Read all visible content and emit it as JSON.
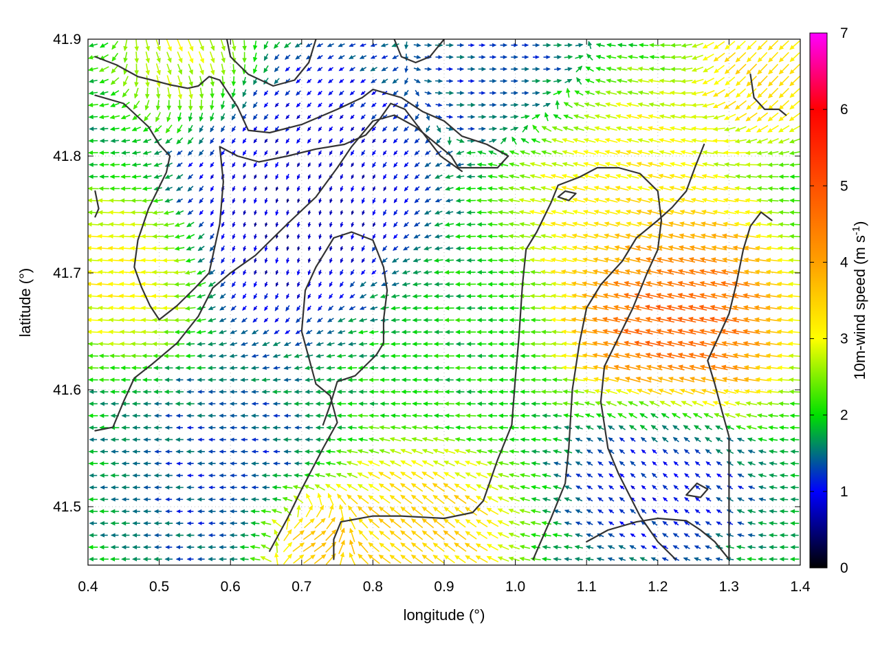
{
  "chart_data": {
    "type": "vector-field",
    "xlabel": "longitude (°)",
    "ylabel": "latitude (°)",
    "colorbar_label": "10m-wind speed (m s-1)",
    "colorbar_label_parts": {
      "main": "10m-wind speed (m s",
      "exp": "-1",
      "close": ")"
    },
    "xlim": [
      0.4,
      1.4
    ],
    "ylim": [
      41.45,
      41.9
    ],
    "clim": [
      0,
      7
    ],
    "xticks": [
      {
        "value": 0.4,
        "label": "0.4"
      },
      {
        "value": 0.5,
        "label": "0.5"
      },
      {
        "value": 0.6,
        "label": "0.6"
      },
      {
        "value": 0.7,
        "label": "0.7"
      },
      {
        "value": 0.8,
        "label": "0.8"
      },
      {
        "value": 0.9,
        "label": "0.9"
      },
      {
        "value": 1.0,
        "label": "1.0"
      },
      {
        "value": 1.1,
        "label": "1.1"
      },
      {
        "value": 1.2,
        "label": "1.2"
      },
      {
        "value": 1.3,
        "label": "1.3"
      },
      {
        "value": 1.4,
        "label": "1.4"
      }
    ],
    "yticks": [
      {
        "value": 41.5,
        "label": "41.5"
      },
      {
        "value": 41.6,
        "label": "41.6"
      },
      {
        "value": 41.7,
        "label": "41.7"
      },
      {
        "value": 41.8,
        "label": "41.8"
      },
      {
        "value": 41.9,
        "label": "41.9"
      }
    ],
    "cticks": [
      {
        "value": 0,
        "label": "0"
      },
      {
        "value": 1,
        "label": "1"
      },
      {
        "value": 2,
        "label": "2"
      },
      {
        "value": 3,
        "label": "3"
      },
      {
        "value": 4,
        "label": "4"
      },
      {
        "value": 5,
        "label": "5"
      },
      {
        "value": 6,
        "label": "6"
      },
      {
        "value": 7,
        "label": "7"
      }
    ],
    "colormap": [
      {
        "v": 0,
        "color": "#000000"
      },
      {
        "v": 1,
        "color": "#0000ff"
      },
      {
        "v": 2,
        "color": "#00e000"
      },
      {
        "v": 3,
        "color": "#ffff00"
      },
      {
        "v": 4,
        "color": "#ffa000"
      },
      {
        "v": 5,
        "color": "#ff5000"
      },
      {
        "v": 6,
        "color": "#ff0000"
      },
      {
        "v": 7,
        "color": "#ff00ff"
      }
    ],
    "grid": "dotted",
    "contour_color": "#333333",
    "contours": [
      [
        [
          0.41,
          41.885
        ],
        [
          0.44,
          41.878
        ],
        [
          0.47,
          41.868
        ],
        [
          0.49,
          41.865
        ],
        [
          0.515,
          41.861
        ],
        [
          0.54,
          41.858
        ],
        [
          0.555,
          41.86
        ],
        [
          0.57,
          41.868
        ],
        [
          0.585,
          41.865
        ],
        [
          0.61,
          41.842
        ],
        [
          0.625,
          41.822
        ],
        [
          0.655,
          41.82
        ],
        [
          0.7,
          41.827
        ],
        [
          0.75,
          41.84
        ],
        [
          0.785,
          41.85
        ],
        [
          0.8,
          41.857
        ],
        [
          0.84,
          41.85
        ],
        [
          0.87,
          41.838
        ],
        [
          0.9,
          41.83
        ],
        [
          0.925,
          41.817
        ],
        [
          0.96,
          41.81
        ],
        [
          0.99,
          41.8
        ]
      ],
      [
        [
          0.41,
          41.852
        ],
        [
          0.45,
          41.845
        ],
        [
          0.485,
          41.825
        ],
        [
          0.5,
          41.81
        ],
        [
          0.515,
          41.8
        ],
        [
          0.51,
          41.786
        ],
        [
          0.485,
          41.755
        ],
        [
          0.47,
          41.728
        ],
        [
          0.465,
          41.705
        ],
        [
          0.475,
          41.688
        ],
        [
          0.487,
          41.672
        ],
        [
          0.5,
          41.66
        ],
        [
          0.525,
          41.672
        ],
        [
          0.55,
          41.687
        ],
        [
          0.57,
          41.7
        ],
        [
          0.585,
          41.742
        ],
        [
          0.59,
          41.778
        ],
        [
          0.585,
          41.808
        ],
        [
          0.61,
          41.8
        ],
        [
          0.64,
          41.795
        ],
        [
          0.68,
          41.8
        ],
        [
          0.72,
          41.806
        ],
        [
          0.76,
          41.81
        ],
        [
          0.79,
          41.818
        ],
        [
          0.81,
          41.832
        ],
        [
          0.825,
          41.845
        ],
        [
          0.845,
          41.84
        ],
        [
          0.87,
          41.82
        ],
        [
          0.895,
          41.8
        ],
        [
          0.925,
          41.787
        ]
      ],
      [
        [
          0.41,
          41.565
        ],
        [
          0.435,
          41.568
        ],
        [
          0.45,
          41.59
        ],
        [
          0.465,
          41.61
        ],
        [
          0.49,
          41.622
        ],
        [
          0.525,
          41.64
        ],
        [
          0.555,
          41.663
        ],
        [
          0.575,
          41.687
        ],
        [
          0.6,
          41.7
        ],
        [
          0.635,
          41.715
        ],
        [
          0.66,
          41.73
        ],
        [
          0.68,
          41.742
        ],
        [
          0.72,
          41.765
        ],
        [
          0.75,
          41.79
        ],
        [
          0.77,
          41.808
        ],
        [
          0.8,
          41.83
        ],
        [
          0.83,
          41.835
        ],
        [
          0.86,
          41.825
        ],
        [
          0.88,
          41.815
        ],
        [
          0.91,
          41.8
        ],
        [
          0.92,
          41.79
        ],
        [
          0.96,
          41.79
        ],
        [
          0.975,
          41.79
        ],
        [
          0.99,
          41.8
        ]
      ],
      [
        [
          0.655,
          41.462
        ],
        [
          0.68,
          41.49
        ],
        [
          0.7,
          41.515
        ],
        [
          0.73,
          41.55
        ],
        [
          0.75,
          41.572
        ],
        [
          0.74,
          41.595
        ],
        [
          0.72,
          41.605
        ],
        [
          0.7,
          41.65
        ],
        [
          0.705,
          41.685
        ],
        [
          0.72,
          41.705
        ],
        [
          0.745,
          41.73
        ],
        [
          0.77,
          41.735
        ],
        [
          0.8,
          41.728
        ],
        [
          0.815,
          41.705
        ],
        [
          0.82,
          41.685
        ],
        [
          0.815,
          41.66
        ],
        [
          0.815,
          41.64
        ],
        [
          0.805,
          41.63
        ],
        [
          0.775,
          41.612
        ],
        [
          0.75,
          41.607
        ],
        [
          0.74,
          41.587
        ],
        [
          0.73,
          41.57
        ]
      ],
      [
        [
          0.745,
          41.455
        ],
        [
          0.745,
          41.472
        ],
        [
          0.755,
          41.487
        ],
        [
          0.8,
          41.492
        ],
        [
          0.84,
          41.492
        ],
        [
          0.9,
          41.49
        ],
        [
          0.94,
          41.495
        ],
        [
          0.955,
          41.505
        ],
        [
          0.975,
          41.54
        ],
        [
          0.995,
          41.57
        ],
        [
          1.0,
          41.61
        ],
        [
          1.005,
          41.645
        ],
        [
          1.01,
          41.69
        ],
        [
          1.015,
          41.72
        ],
        [
          1.03,
          41.735
        ],
        [
          1.05,
          41.76
        ],
        [
          1.06,
          41.775
        ],
        [
          1.09,
          41.782
        ],
        [
          1.115,
          41.79
        ],
        [
          1.145,
          41.79
        ],
        [
          1.175,
          41.785
        ],
        [
          1.2,
          41.77
        ],
        [
          1.205,
          41.745
        ],
        [
          1.2,
          41.72
        ],
        [
          1.185,
          41.7
        ],
        [
          1.165,
          41.67
        ],
        [
          1.145,
          41.645
        ],
        [
          1.125,
          41.62
        ],
        [
          1.12,
          41.59
        ],
        [
          1.13,
          41.55
        ],
        [
          1.145,
          41.528
        ],
        [
          1.16,
          41.51
        ],
        [
          1.175,
          41.492
        ],
        [
          1.2,
          41.47
        ],
        [
          1.225,
          41.455
        ]
      ],
      [
        [
          1.025,
          41.455
        ],
        [
          1.05,
          41.49
        ],
        [
          1.07,
          41.52
        ],
        [
          1.075,
          41.55
        ],
        [
          1.08,
          41.6
        ],
        [
          1.09,
          41.64
        ],
        [
          1.1,
          41.67
        ],
        [
          1.12,
          41.69
        ],
        [
          1.15,
          41.71
        ],
        [
          1.17,
          41.73
        ],
        [
          1.2,
          41.745
        ],
        [
          1.22,
          41.756
        ],
        [
          1.24,
          41.77
        ],
        [
          1.252,
          41.79
        ],
        [
          1.265,
          41.81
        ]
      ],
      [
        [
          1.3,
          41.455
        ],
        [
          1.3,
          41.49
        ],
        [
          1.3,
          41.535
        ],
        [
          1.3,
          41.56
        ],
        [
          1.29,
          41.582
        ],
        [
          1.28,
          41.605
        ],
        [
          1.27,
          41.625
        ],
        [
          1.285,
          41.645
        ],
        [
          1.3,
          41.665
        ],
        [
          1.31,
          41.69
        ],
        [
          1.32,
          41.72
        ],
        [
          1.33,
          41.74
        ],
        [
          1.345,
          41.752
        ],
        [
          1.36,
          41.745
        ]
      ],
      [
        [
          1.33,
          41.87
        ],
        [
          1.335,
          41.85
        ],
        [
          1.35,
          41.84
        ],
        [
          1.37,
          41.84
        ],
        [
          1.38,
          41.835
        ]
      ],
      [
        [
          1.24,
          41.51
        ],
        [
          1.26,
          41.508
        ],
        [
          1.27,
          41.515
        ],
        [
          1.255,
          41.52
        ],
        [
          1.24,
          41.51
        ]
      ],
      [
        [
          1.06,
          41.765
        ],
        [
          1.075,
          41.762
        ],
        [
          1.085,
          41.768
        ],
        [
          1.07,
          41.77
        ],
        [
          1.06,
          41.765
        ]
      ],
      [
        [
          0.41,
          41.77
        ],
        [
          0.415,
          41.755
        ],
        [
          0.41,
          41.748
        ]
      ],
      [
        [
          1.1,
          41.47
        ],
        [
          1.13,
          41.48
        ],
        [
          1.17,
          41.487
        ],
        [
          1.2,
          41.49
        ],
        [
          1.24,
          41.488
        ],
        [
          1.26,
          41.48
        ],
        [
          1.28,
          41.47
        ],
        [
          1.3,
          41.455
        ]
      ],
      [
        [
          0.595,
          41.9
        ],
        [
          0.6,
          41.885
        ],
        [
          0.625,
          41.87
        ],
        [
          0.66,
          41.86
        ],
        [
          0.69,
          41.865
        ],
        [
          0.71,
          41.88
        ],
        [
          0.72,
          41.9
        ]
      ],
      [
        [
          0.83,
          41.9
        ],
        [
          0.84,
          41.885
        ],
        [
          0.86,
          41.88
        ],
        [
          0.88,
          41.885
        ],
        [
          0.9,
          41.9
        ]
      ]
    ],
    "wind_field": {
      "grid_rows": 44,
      "grid_cols": 66,
      "centers": [
        {
          "lon": 1.22,
          "lat": 41.665,
          "speed": 5.3,
          "dir_u": -1.0,
          "dir_v": 0.25,
          "radius": 0.11
        },
        {
          "lon": 1.15,
          "lat": 41.775,
          "speed": 3.3,
          "dir_u": -1.0,
          "dir_v": 0.3,
          "radius": 0.12
        },
        {
          "lon": 0.87,
          "lat": 41.49,
          "speed": 3.8,
          "dir_u": -0.7,
          "dir_v": 0.7,
          "radius": 0.09
        },
        {
          "lon": 0.71,
          "lat": 41.475,
          "speed": 4.2,
          "dir_u": 0.8,
          "dir_v": 0.3,
          "radius": 0.06
        },
        {
          "lon": 0.45,
          "lat": 41.7,
          "speed": 3.3,
          "dir_u": -1.0,
          "dir_v": 0.1,
          "radius": 0.08
        },
        {
          "lon": 1.35,
          "lat": 41.87,
          "speed": 3.6,
          "dir_u": -0.6,
          "dir_v": -0.8,
          "radius": 0.07
        },
        {
          "lon": 0.55,
          "lat": 41.89,
          "speed": 3.0,
          "dir_u": 0.5,
          "dir_v": -0.8,
          "radius": 0.08
        },
        {
          "lon": 0.9,
          "lat": 41.63,
          "speed": 2.0,
          "dir_u": -1.0,
          "dir_v": 0.0,
          "radius": 0.12
        },
        {
          "lon": 0.7,
          "lat": 41.82,
          "speed": 0.9,
          "dir_u": -0.5,
          "dir_v": -0.5,
          "radius": 0.1
        },
        {
          "lon": 0.7,
          "lat": 41.75,
          "speed": 0.5,
          "dir_u": 0.0,
          "dir_v": -1.0,
          "radius": 0.12
        },
        {
          "lon": 0.6,
          "lat": 41.52,
          "speed": 1.2,
          "dir_u": -1.0,
          "dir_v": 0.0,
          "radius": 0.1
        },
        {
          "lon": 1.2,
          "lat": 41.53,
          "speed": 0.9,
          "dir_u": -0.6,
          "dir_v": 0.7,
          "radius": 0.09
        },
        {
          "lon": 0.98,
          "lat": 41.88,
          "speed": 1.2,
          "dir_u": 1.0,
          "dir_v": 0.0,
          "radius": 0.1
        }
      ]
    }
  }
}
